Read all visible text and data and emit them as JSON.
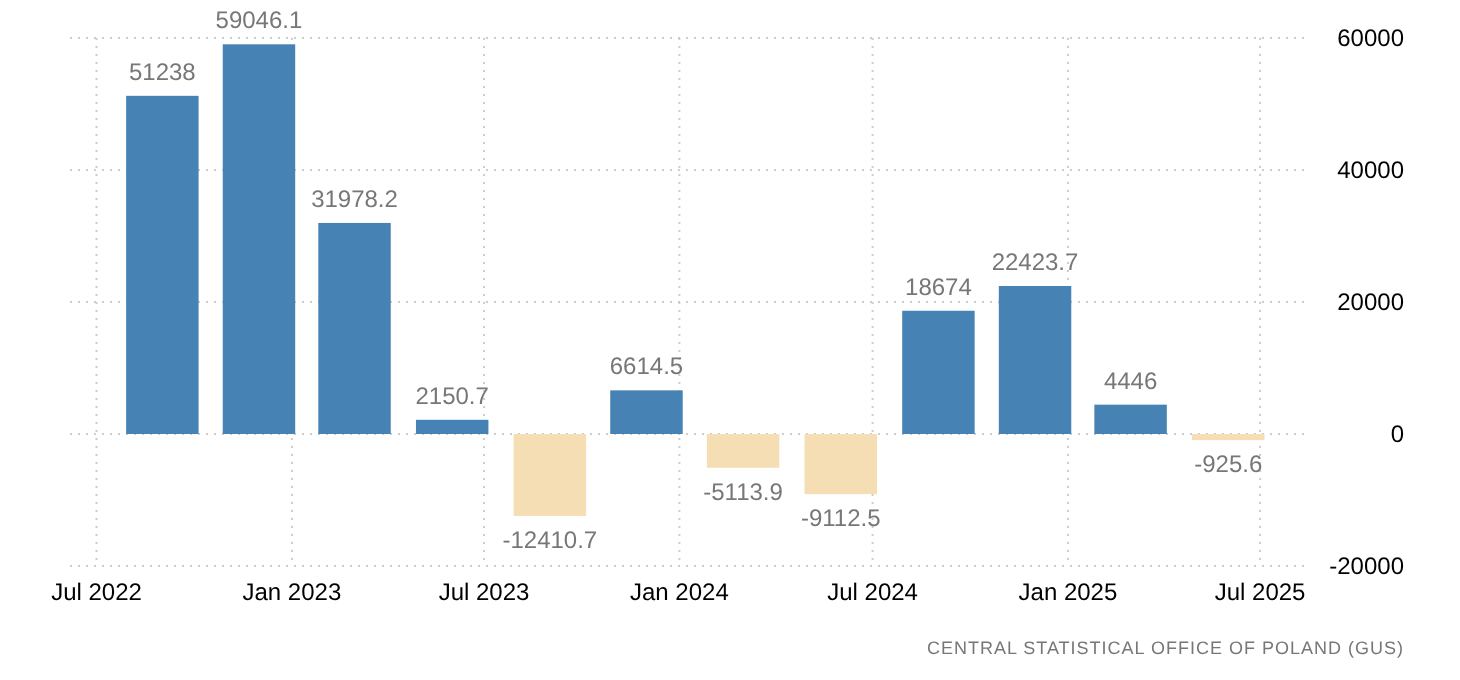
{
  "chart_data": {
    "type": "bar",
    "x": [
      "2022-09-01",
      "2022-12-01",
      "2023-03-01",
      "2023-06-01",
      "2023-09-01",
      "2023-12-01",
      "2024-03-01",
      "2024-06-01",
      "2024-09-01",
      "2024-12-01",
      "2025-03-01",
      "2025-06-01"
    ],
    "values": [
      51238,
      59046.1,
      31978.2,
      2150.7,
      -12410.7,
      6614.5,
      -5113.9,
      -9112.5,
      18674,
      22423.7,
      4446,
      -925.6
    ],
    "colors": [
      "#4682b4",
      "#4682b4",
      "#4682b4",
      "#4682b4",
      "#f5deb3",
      "#4682b4",
      "#f5deb3",
      "#f5deb3",
      "#4682b4",
      "#4682b4",
      "#4682b4",
      "#f5deb3"
    ],
    "data_labels": true,
    "xlim": [
      "2022-06-06",
      "2025-08-17"
    ],
    "xticks": [
      {
        "value": "2022-07-01",
        "label": "Jul 2022"
      },
      {
        "value": "2023-01-01",
        "label": "Jan 2023"
      },
      {
        "value": "2023-07-01",
        "label": "Jul 2023"
      },
      {
        "value": "2024-01-01",
        "label": "Jan 2024"
      },
      {
        "value": "2024-07-01",
        "label": "Jul 2024"
      },
      {
        "value": "2025-01-01",
        "label": "Jan 2025"
      },
      {
        "value": "2025-07-01",
        "label": "Jul 2025"
      }
    ],
    "ylim": [
      -20000,
      60000
    ],
    "yticks": [
      -20000,
      0,
      20000,
      40000,
      60000
    ],
    "grid": true,
    "annotations": [
      "CENTRAL STATISTICAL OFFICE OF POLAND (GUS)"
    ]
  }
}
